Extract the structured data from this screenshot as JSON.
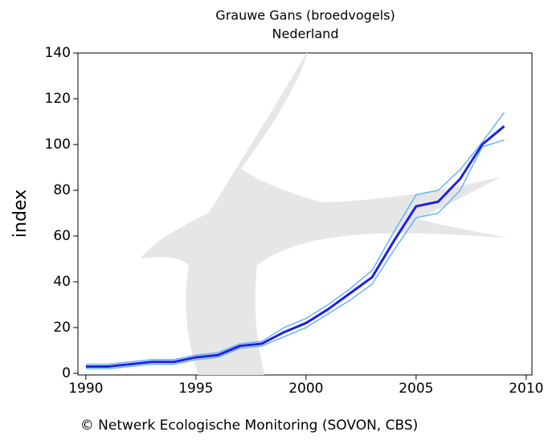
{
  "chart_data": {
    "type": "line",
    "title": "Grauwe Gans (broedvogels)",
    "subtitle": "Nederland",
    "y_label": "index",
    "footer": "© Netwerk Ecologische Monitoring (SOVON, CBS)",
    "x": [
      1990,
      1991,
      1992,
      1993,
      1994,
      1995,
      1996,
      1997,
      1998,
      1999,
      2000,
      2001,
      2002,
      2003,
      2004,
      2005,
      2006,
      2007,
      2008,
      2009
    ],
    "series": [
      {
        "color": "#66b3ff",
        "width": 1.5,
        "values": [
          4,
          4,
          5,
          6,
          6,
          8,
          9,
          13,
          14,
          20,
          24,
          30,
          37,
          45,
          62,
          78,
          80,
          89,
          101,
          114
        ]
      },
      {
        "color": "#66b3ff",
        "width": 1.5,
        "values": [
          2,
          2,
          3,
          4,
          4,
          6,
          7,
          11,
          12,
          16,
          20,
          26,
          32,
          39,
          54,
          68,
          70,
          80,
          99,
          102
        ]
      },
      {
        "color": "#1e1ee6",
        "width": 3,
        "values": [
          3,
          3,
          4,
          5,
          5,
          7,
          8,
          12,
          13,
          18,
          22,
          28,
          35,
          42,
          58,
          73,
          75,
          85,
          100,
          108
        ]
      }
    ],
    "xlim": [
      1989.64,
      2010.26
    ],
    "xticks": [
      1990,
      1995,
      2000,
      2005,
      2010
    ],
    "ylim": [
      -0.7,
      140
    ],
    "yticks": [
      0,
      20,
      40,
      60,
      80,
      100,
      120,
      140
    ]
  }
}
